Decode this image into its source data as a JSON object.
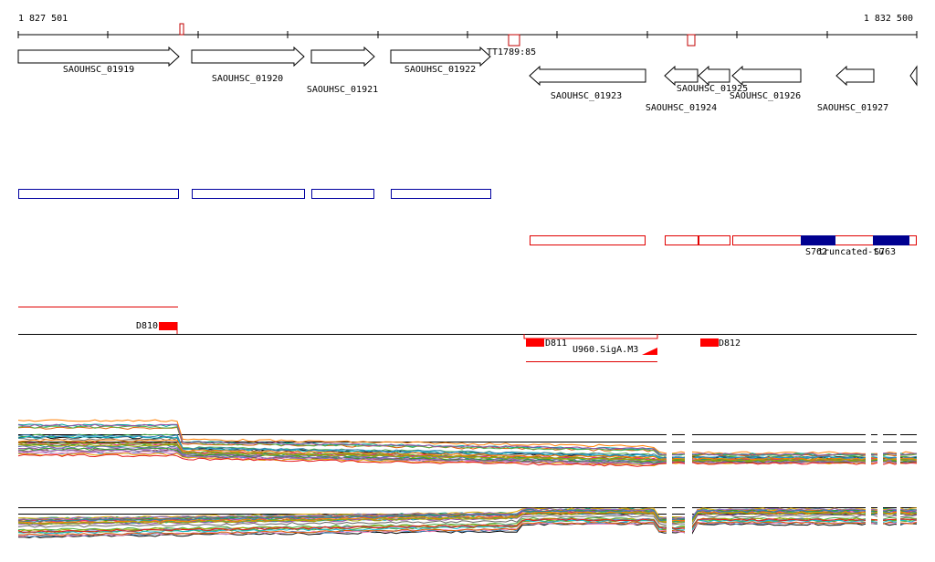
{
  "coords": {
    "start": "1 827 501",
    "end": "1 832 500"
  },
  "genes": [
    {
      "id": "SAOUHSC_01919",
      "dir": "fwd"
    },
    {
      "id": "SAOUHSC_01920",
      "dir": "fwd"
    },
    {
      "id": "SAOUHSC_01921",
      "dir": "fwd"
    },
    {
      "id": "SAOUHSC_01922",
      "dir": "fwd"
    },
    {
      "id": "SAOUHSC_01923",
      "dir": "rev"
    },
    {
      "id": "SAOUHSC_01924",
      "dir": "rev"
    },
    {
      "id": "SAOUHSC_01925",
      "dir": "rev"
    },
    {
      "id": "SAOUHSC_01926",
      "dir": "rev"
    },
    {
      "id": "SAOUHSC_01927",
      "dir": "rev"
    }
  ],
  "terminator_labels": [
    "TT1789:85"
  ],
  "segment_labels": [
    "S762",
    "truncated-tu",
    "S763"
  ],
  "feature_labels": [
    "D810",
    "D811",
    "D812"
  ],
  "promoter_label": "U960.SigA.M3",
  "colors": {
    "forward_strand": "#0000a0",
    "reverse_strand": "#e00000",
    "feature_fill": "#ff0000",
    "segment_fill": "#000090"
  }
}
